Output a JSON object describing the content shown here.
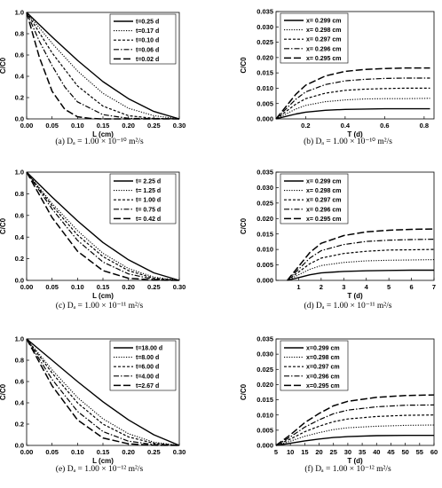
{
  "chart_data": [
    {
      "type": "line",
      "caption": "(a) Dₐ = 1.00 × 10⁻¹⁰ m²/s",
      "xlabel": "L (cm)",
      "ylabel": "C/C0",
      "xlim": [
        0,
        0.3
      ],
      "ylim": [
        0,
        1.0
      ],
      "xticks": [
        0.0,
        0.05,
        0.1,
        0.15,
        0.2,
        0.25,
        0.3
      ],
      "xtick_labels": [
        "0.00",
        "0.05",
        "0.10",
        "0.15",
        "0.20",
        "0.25",
        "0.30"
      ],
      "yticks": [
        0,
        0.2,
        0.4,
        0.6,
        0.8,
        1.0
      ],
      "ytick_labels": [
        "0.0",
        "0.2",
        "0.4",
        "0.6",
        "0.8",
        "1.0"
      ],
      "legend_pos": "top-right",
      "series": [
        {
          "name": "t=0.25 d",
          "style": "solid",
          "x": [
            0,
            0.05,
            0.1,
            0.15,
            0.2,
            0.25,
            0.3
          ],
          "y": [
            1.0,
            0.77,
            0.55,
            0.35,
            0.19,
            0.07,
            0.0
          ]
        },
        {
          "name": "t=0.17 d",
          "style": "dot",
          "x": [
            0,
            0.05,
            0.1,
            0.15,
            0.2,
            0.25,
            0.3
          ],
          "y": [
            1.0,
            0.71,
            0.45,
            0.24,
            0.1,
            0.03,
            0.0
          ]
        },
        {
          "name": "t=0.10 d",
          "style": "shortdash",
          "x": [
            0,
            0.05,
            0.1,
            0.15,
            0.2,
            0.25,
            0.3
          ],
          "y": [
            1.0,
            0.62,
            0.31,
            0.12,
            0.03,
            0.005,
            0.0
          ]
        },
        {
          "name": "t=0.06 d",
          "style": "dashdot",
          "x": [
            0,
            0.025,
            0.05,
            0.075,
            0.1,
            0.15,
            0.2,
            0.3
          ],
          "y": [
            1.0,
            0.73,
            0.5,
            0.3,
            0.16,
            0.04,
            0.005,
            0.0
          ]
        },
        {
          "name": "t=0.02 d",
          "style": "longdash",
          "x": [
            0,
            0.025,
            0.05,
            0.075,
            0.1,
            0.125,
            0.15,
            0.3
          ],
          "y": [
            1.0,
            0.58,
            0.26,
            0.09,
            0.02,
            0.004,
            0.0,
            0.0
          ]
        }
      ]
    },
    {
      "type": "line",
      "caption": "(b) Dₐ = 1.00 × 10⁻¹⁰ m²/s",
      "xlabel": "T (d)",
      "ylabel": "C/C0",
      "xlim": [
        0.05,
        0.85
      ],
      "ylim": [
        0,
        0.035
      ],
      "xticks": [
        0.2,
        0.4,
        0.6,
        0.8
      ],
      "xtick_labels": [
        "0.2",
        "0.4",
        "0.6",
        "0.8"
      ],
      "yticks": [
        0,
        0.005,
        0.01,
        0.015,
        0.02,
        0.025,
        0.03,
        0.035
      ],
      "ytick_labels": [
        "0.000",
        "0.005",
        "0.010",
        "0.015",
        "0.020",
        "0.025",
        "0.030",
        "0.035"
      ],
      "legend_pos": "top-left",
      "series": [
        {
          "name": "x= 0.299 cm",
          "style": "solid",
          "x": [
            0.05,
            0.1,
            0.15,
            0.2,
            0.3,
            0.4,
            0.5,
            0.6,
            0.7,
            0.83
          ],
          "y": [
            0.0,
            0.0008,
            0.0016,
            0.0022,
            0.0028,
            0.0031,
            0.0032,
            0.0033,
            0.0033,
            0.0033
          ]
        },
        {
          "name": "x= 0.298 cm",
          "style": "dot",
          "x": [
            0.05,
            0.1,
            0.15,
            0.2,
            0.3,
            0.4,
            0.5,
            0.6,
            0.7,
            0.83
          ],
          "y": [
            0.0,
            0.0016,
            0.0032,
            0.0044,
            0.0056,
            0.0062,
            0.0065,
            0.0066,
            0.0066,
            0.0067
          ]
        },
        {
          "name": "x= 0.297 cm",
          "style": "shortdash",
          "x": [
            0.05,
            0.1,
            0.15,
            0.2,
            0.3,
            0.4,
            0.5,
            0.6,
            0.7,
            0.83
          ],
          "y": [
            0.0,
            0.0024,
            0.0048,
            0.0066,
            0.0084,
            0.0093,
            0.0097,
            0.0099,
            0.01,
            0.01
          ]
        },
        {
          "name": "x= 0.296 cm",
          "style": "dashdot",
          "x": [
            0.05,
            0.1,
            0.15,
            0.2,
            0.3,
            0.4,
            0.5,
            0.6,
            0.7,
            0.83
          ],
          "y": [
            0.0,
            0.0032,
            0.0064,
            0.0088,
            0.0112,
            0.0124,
            0.0129,
            0.0132,
            0.0133,
            0.0133
          ]
        },
        {
          "name": "x= 0.295 cm",
          "style": "longdash",
          "x": [
            0.05,
            0.1,
            0.15,
            0.2,
            0.3,
            0.4,
            0.5,
            0.6,
            0.7,
            0.83
          ],
          "y": [
            0.0,
            0.004,
            0.008,
            0.011,
            0.014,
            0.0155,
            0.0161,
            0.0164,
            0.0166,
            0.0166
          ]
        }
      ]
    },
    {
      "type": "line",
      "caption": "(c) Dₐ = 1.00 × 10⁻¹¹ m²/s",
      "xlabel": "L (cm)",
      "ylabel": "C/C0",
      "xlim": [
        0,
        0.3
      ],
      "ylim": [
        0,
        1.0
      ],
      "xticks": [
        0.0,
        0.05,
        0.1,
        0.15,
        0.2,
        0.25,
        0.3
      ],
      "xtick_labels": [
        "0.00",
        "0.05",
        "0.10",
        "0.15",
        "0.20",
        "0.25",
        "0.30"
      ],
      "yticks": [
        0,
        0.2,
        0.4,
        0.6,
        0.8,
        1.0
      ],
      "ytick_labels": [
        "0.0",
        "0.2",
        "0.4",
        "0.6",
        "0.8",
        "1.0"
      ],
      "legend_pos": "top-right",
      "series": [
        {
          "name": "t= 2.25 d",
          "style": "solid",
          "x": [
            0,
            0.05,
            0.1,
            0.15,
            0.2,
            0.25,
            0.3
          ],
          "y": [
            1.0,
            0.77,
            0.55,
            0.35,
            0.19,
            0.07,
            0.0
          ]
        },
        {
          "name": "t= 1.25 d",
          "style": "dot",
          "x": [
            0,
            0.05,
            0.1,
            0.15,
            0.2,
            0.25,
            0.3
          ],
          "y": [
            1.0,
            0.71,
            0.46,
            0.25,
            0.11,
            0.03,
            0.0
          ]
        },
        {
          "name": "t= 1.00 d",
          "style": "shortdash",
          "x": [
            0,
            0.05,
            0.1,
            0.15,
            0.2,
            0.25,
            0.3
          ],
          "y": [
            1.0,
            0.69,
            0.42,
            0.22,
            0.09,
            0.02,
            0.0
          ]
        },
        {
          "name": "t= 0.75 d",
          "style": "dashdot",
          "x": [
            0,
            0.05,
            0.1,
            0.15,
            0.2,
            0.25,
            0.3
          ],
          "y": [
            1.0,
            0.66,
            0.37,
            0.17,
            0.06,
            0.01,
            0.0
          ]
        },
        {
          "name": "t= 0.42 d",
          "style": "longdash",
          "x": [
            0,
            0.05,
            0.1,
            0.15,
            0.2,
            0.25,
            0.3
          ],
          "y": [
            1.0,
            0.58,
            0.27,
            0.09,
            0.02,
            0.003,
            0.0
          ]
        }
      ]
    },
    {
      "type": "line",
      "caption": "(d) Dₐ = 1.00 × 10⁻¹¹ m²/s",
      "xlabel": "T (d)",
      "ylabel": "C/C0",
      "xlim": [
        0,
        7
      ],
      "ylim": [
        0,
        0.035
      ],
      "xticks": [
        1,
        2,
        3,
        4,
        5,
        6,
        7
      ],
      "xtick_labels": [
        "1",
        "2",
        "3",
        "4",
        "5",
        "6",
        "7"
      ],
      "yticks": [
        0,
        0.005,
        0.01,
        0.015,
        0.02,
        0.025,
        0.03,
        0.035
      ],
      "ytick_labels": [
        "0.000",
        "0.005",
        "0.010",
        "0.015",
        "0.020",
        "0.025",
        "0.030",
        "0.035"
      ],
      "legend_pos": "top-left",
      "series": [
        {
          "name": "x= 0.299 cm",
          "style": "solid",
          "x": [
            0.5,
            1,
            1.5,
            2,
            3,
            4,
            5,
            6,
            7
          ],
          "y": [
            0.0,
            0.0009,
            0.0018,
            0.0024,
            0.0029,
            0.0031,
            0.0032,
            0.0033,
            0.0033
          ]
        },
        {
          "name": "x= 0.298 cm",
          "style": "dot",
          "x": [
            0.5,
            1,
            1.5,
            2,
            3,
            4,
            5,
            6,
            7
          ],
          "y": [
            0.0,
            0.0018,
            0.0036,
            0.0048,
            0.0058,
            0.0063,
            0.0065,
            0.0066,
            0.0067
          ]
        },
        {
          "name": "x= 0.297 cm",
          "style": "shortdash",
          "x": [
            0.5,
            1,
            1.5,
            2,
            3,
            4,
            5,
            6,
            7
          ],
          "y": [
            0.0,
            0.0027,
            0.0054,
            0.0072,
            0.0087,
            0.0094,
            0.0098,
            0.0099,
            0.01
          ]
        },
        {
          "name": "x= 0.296 cm",
          "style": "dashdot",
          "x": [
            0.5,
            1,
            1.5,
            2,
            3,
            4,
            5,
            6,
            7
          ],
          "y": [
            0.0,
            0.0036,
            0.0072,
            0.0096,
            0.0116,
            0.0126,
            0.013,
            0.0132,
            0.0133
          ]
        },
        {
          "name": "x= 0.295 cm",
          "style": "longdash",
          "x": [
            0.5,
            1,
            1.5,
            2,
            3,
            4,
            5,
            6,
            7
          ],
          "y": [
            0.0,
            0.0045,
            0.009,
            0.012,
            0.0145,
            0.0157,
            0.0162,
            0.0165,
            0.0166
          ]
        }
      ]
    },
    {
      "type": "line",
      "caption": "(e) Dₐ = 1.00 × 10⁻¹² m²/s",
      "xlabel": "L (cm)",
      "ylabel": "C/C0",
      "xlim": [
        0,
        0.3
      ],
      "ylim": [
        0,
        1.0
      ],
      "xticks": [
        0.0,
        0.05,
        0.1,
        0.15,
        0.2,
        0.25,
        0.3
      ],
      "xtick_labels": [
        "0.00",
        "0.05",
        "0.10",
        "0.15",
        "0.20",
        "0.25",
        "0.30"
      ],
      "yticks": [
        0,
        0.2,
        0.4,
        0.6,
        0.8,
        1.0
      ],
      "ytick_labels": [
        "0.0",
        "0.2",
        "0.4",
        "0.6",
        "0.8",
        "1.0"
      ],
      "legend_pos": "top-right",
      "series": [
        {
          "name": "t=18.00 d",
          "style": "solid",
          "x": [
            0,
            0.05,
            0.1,
            0.15,
            0.2,
            0.25,
            0.3
          ],
          "y": [
            1.0,
            0.8,
            0.6,
            0.41,
            0.24,
            0.1,
            0.0
          ]
        },
        {
          "name": "t=8.00 d",
          "style": "dot",
          "x": [
            0,
            0.05,
            0.1,
            0.15,
            0.2,
            0.25,
            0.3
          ],
          "y": [
            1.0,
            0.71,
            0.45,
            0.25,
            0.11,
            0.03,
            0.0
          ]
        },
        {
          "name": "t=6.00 d",
          "style": "shortdash",
          "x": [
            0,
            0.05,
            0.1,
            0.15,
            0.2,
            0.25,
            0.3
          ],
          "y": [
            1.0,
            0.68,
            0.4,
            0.2,
            0.08,
            0.02,
            0.0
          ]
        },
        {
          "name": "t=4.00 d",
          "style": "dashdot",
          "x": [
            0,
            0.05,
            0.1,
            0.15,
            0.2,
            0.25,
            0.3
          ],
          "y": [
            1.0,
            0.62,
            0.32,
            0.13,
            0.04,
            0.008,
            0.0
          ]
        },
        {
          "name": "t=2.67 d",
          "style": "longdash",
          "x": [
            0,
            0.05,
            0.1,
            0.15,
            0.2,
            0.25,
            0.3
          ],
          "y": [
            1.0,
            0.56,
            0.24,
            0.07,
            0.015,
            0.002,
            0.0
          ]
        }
      ]
    },
    {
      "type": "line",
      "caption": "(f) Dₐ = 1.00 × 10⁻¹² m²/s",
      "xlabel": "T (d)",
      "ylabel": "C/C0",
      "xlim": [
        5,
        60
      ],
      "ylim": [
        0,
        0.035
      ],
      "xticks": [
        5,
        10,
        15,
        20,
        25,
        30,
        35,
        40,
        45,
        50,
        55,
        60
      ],
      "xtick_labels": [
        "5",
        "10",
        "15",
        "20",
        "25",
        "30",
        "35",
        "40",
        "45",
        "50",
        "55",
        "60"
      ],
      "yticks": [
        0,
        0.005,
        0.01,
        0.015,
        0.02,
        0.025,
        0.03,
        0.035
      ],
      "ytick_labels": [
        "0.000",
        "0.005",
        "0.010",
        "0.015",
        "0.020",
        "0.025",
        "0.030",
        "0.035"
      ],
      "legend_pos": "top-left",
      "series": [
        {
          "name": "x=0.299 cm",
          "style": "solid",
          "x": [
            5,
            10,
            15,
            20,
            25,
            30,
            40,
            50,
            60
          ],
          "y": [
            0.0,
            0.0007,
            0.0015,
            0.0021,
            0.0026,
            0.0029,
            0.0032,
            0.0033,
            0.0033
          ]
        },
        {
          "name": "x=0.298 cm",
          "style": "dot",
          "x": [
            5,
            10,
            15,
            20,
            25,
            30,
            40,
            50,
            60
          ],
          "y": [
            0.0,
            0.0014,
            0.003,
            0.0042,
            0.0052,
            0.0058,
            0.0063,
            0.0066,
            0.0067
          ]
        },
        {
          "name": "x=0.297 cm",
          "style": "shortdash",
          "x": [
            5,
            10,
            15,
            20,
            25,
            30,
            40,
            50,
            60
          ],
          "y": [
            0.0,
            0.0021,
            0.0045,
            0.0063,
            0.0078,
            0.0087,
            0.0095,
            0.0099,
            0.01
          ]
        },
        {
          "name": "x=0.296 cm",
          "style": "dashdot",
          "x": [
            5,
            10,
            15,
            20,
            25,
            30,
            40,
            50,
            60
          ],
          "y": [
            0.0,
            0.0028,
            0.006,
            0.0084,
            0.0104,
            0.0116,
            0.0127,
            0.0132,
            0.0133
          ]
        },
        {
          "name": "x=0.295 cm",
          "style": "longdash",
          "x": [
            5,
            10,
            15,
            20,
            25,
            30,
            40,
            50,
            60
          ],
          "y": [
            0.0,
            0.0035,
            0.0075,
            0.0105,
            0.013,
            0.0145,
            0.0158,
            0.0164,
            0.0166
          ]
        }
      ]
    }
  ]
}
